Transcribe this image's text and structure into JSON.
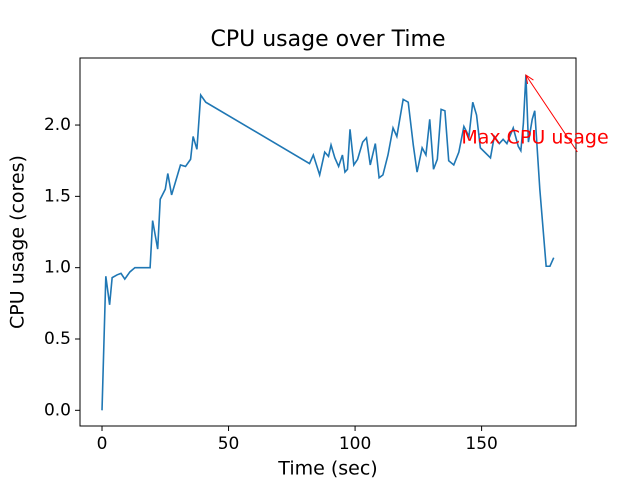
{
  "chart_data": {
    "type": "line",
    "title": "CPU usage over Time",
    "x_label": "Time (sec)",
    "y_label": "CPU usage (cores)",
    "x": [
      0,
      1.5,
      3,
      4,
      6,
      7.5,
      9,
      11,
      13,
      15,
      19,
      20,
      22,
      23,
      25,
      26,
      27.5,
      29,
      31,
      33,
      35,
      36,
      37.5,
      39,
      41,
      82,
      83.5,
      86,
      88,
      89.5,
      90.5,
      92,
      93.5,
      95,
      96,
      97,
      98,
      99.5,
      101,
      103,
      104.5,
      106,
      108,
      109.5,
      111,
      113,
      115,
      116.5,
      119,
      121,
      123,
      124.5,
      126.5,
      128,
      129.5,
      131,
      132.5,
      134,
      135.5,
      137,
      139,
      141,
      143,
      145,
      146.5,
      148,
      149.5,
      153.5,
      155,
      157,
      158.5,
      160,
      162.5,
      164.5,
      165.5,
      166.5,
      167.5,
      168.5,
      170,
      171,
      173,
      175.5,
      177,
      178.5
    ],
    "series": [
      {
        "color": "#1f77b4",
        "values": [
          0.0,
          0.94,
          0.74,
          0.93,
          0.95,
          0.96,
          0.92,
          0.97,
          1.0,
          1.0,
          1.0,
          1.33,
          1.13,
          1.48,
          1.55,
          1.66,
          1.51,
          1.6,
          1.72,
          1.71,
          1.76,
          1.92,
          1.83,
          2.21,
          2.16,
          1.73,
          1.79,
          1.65,
          1.81,
          1.78,
          1.86,
          1.77,
          1.71,
          1.79,
          1.67,
          1.69,
          1.97,
          1.72,
          1.76,
          1.88,
          1.91,
          1.72,
          1.87,
          1.63,
          1.65,
          1.79,
          1.98,
          1.92,
          2.18,
          2.16,
          1.86,
          1.67,
          1.84,
          1.79,
          2.04,
          1.69,
          1.76,
          2.11,
          2.1,
          1.75,
          1.72,
          1.81,
          1.99,
          1.92,
          2.16,
          2.07,
          1.84,
          1.77,
          1.92,
          1.87,
          1.9,
          1.87,
          1.98,
          1.85,
          1.82,
          2.01,
          2.35,
          1.88,
          2.04,
          2.1,
          1.55,
          1.01,
          1.01,
          1.07
        ]
      }
    ],
    "xlim": [
      -8.7,
      187.3
    ],
    "ylim": [
      -0.11,
      2.47
    ],
    "xticks": [
      0,
      50,
      100,
      150
    ],
    "yticks": [
      {
        "value": 0,
        "label": "0.0"
      },
      0.5,
      {
        "value": 1,
        "label": "1.0"
      },
      1.5,
      {
        "value": 2,
        "label": "2.0"
      }
    ],
    "annotation": {
      "text": "Max CPU usage",
      "color": "#ff0000",
      "xy": [
        167.5,
        2.35
      ],
      "xytext": [
        142,
        1.91
      ]
    }
  }
}
